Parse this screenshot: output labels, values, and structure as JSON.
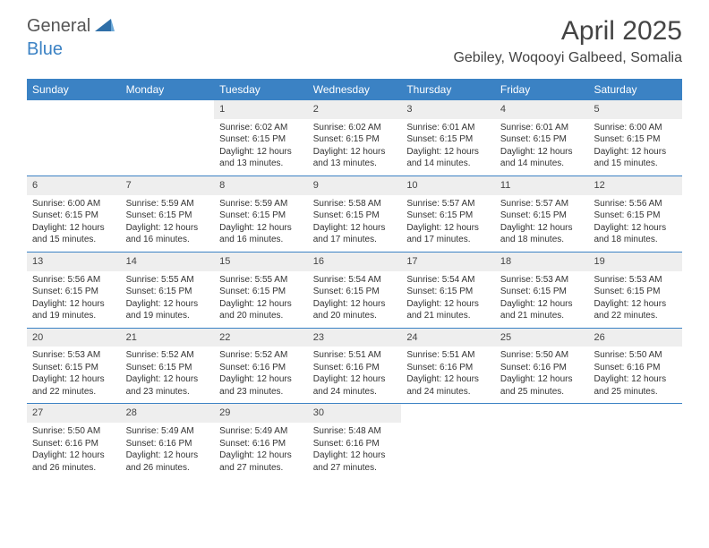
{
  "logo": {
    "part1": "General",
    "part2": "Blue"
  },
  "title": "April 2025",
  "location": "Gebiley, Woqooyi Galbeed, Somalia",
  "colors": {
    "header_bg": "#3b82c4",
    "header_text": "#ffffff",
    "daynum_bg": "#eeeeee",
    "border": "#3b82c4",
    "body_text": "#333333"
  },
  "weekdays": [
    "Sunday",
    "Monday",
    "Tuesday",
    "Wednesday",
    "Thursday",
    "Friday",
    "Saturday"
  ],
  "weeks": [
    [
      {
        "n": "",
        "sr": "",
        "ss": "",
        "dl": ""
      },
      {
        "n": "",
        "sr": "",
        "ss": "",
        "dl": ""
      },
      {
        "n": "1",
        "sr": "Sunrise: 6:02 AM",
        "ss": "Sunset: 6:15 PM",
        "dl": "Daylight: 12 hours and 13 minutes."
      },
      {
        "n": "2",
        "sr": "Sunrise: 6:02 AM",
        "ss": "Sunset: 6:15 PM",
        "dl": "Daylight: 12 hours and 13 minutes."
      },
      {
        "n": "3",
        "sr": "Sunrise: 6:01 AM",
        "ss": "Sunset: 6:15 PM",
        "dl": "Daylight: 12 hours and 14 minutes."
      },
      {
        "n": "4",
        "sr": "Sunrise: 6:01 AM",
        "ss": "Sunset: 6:15 PM",
        "dl": "Daylight: 12 hours and 14 minutes."
      },
      {
        "n": "5",
        "sr": "Sunrise: 6:00 AM",
        "ss": "Sunset: 6:15 PM",
        "dl": "Daylight: 12 hours and 15 minutes."
      }
    ],
    [
      {
        "n": "6",
        "sr": "Sunrise: 6:00 AM",
        "ss": "Sunset: 6:15 PM",
        "dl": "Daylight: 12 hours and 15 minutes."
      },
      {
        "n": "7",
        "sr": "Sunrise: 5:59 AM",
        "ss": "Sunset: 6:15 PM",
        "dl": "Daylight: 12 hours and 16 minutes."
      },
      {
        "n": "8",
        "sr": "Sunrise: 5:59 AM",
        "ss": "Sunset: 6:15 PM",
        "dl": "Daylight: 12 hours and 16 minutes."
      },
      {
        "n": "9",
        "sr": "Sunrise: 5:58 AM",
        "ss": "Sunset: 6:15 PM",
        "dl": "Daylight: 12 hours and 17 minutes."
      },
      {
        "n": "10",
        "sr": "Sunrise: 5:57 AM",
        "ss": "Sunset: 6:15 PM",
        "dl": "Daylight: 12 hours and 17 minutes."
      },
      {
        "n": "11",
        "sr": "Sunrise: 5:57 AM",
        "ss": "Sunset: 6:15 PM",
        "dl": "Daylight: 12 hours and 18 minutes."
      },
      {
        "n": "12",
        "sr": "Sunrise: 5:56 AM",
        "ss": "Sunset: 6:15 PM",
        "dl": "Daylight: 12 hours and 18 minutes."
      }
    ],
    [
      {
        "n": "13",
        "sr": "Sunrise: 5:56 AM",
        "ss": "Sunset: 6:15 PM",
        "dl": "Daylight: 12 hours and 19 minutes."
      },
      {
        "n": "14",
        "sr": "Sunrise: 5:55 AM",
        "ss": "Sunset: 6:15 PM",
        "dl": "Daylight: 12 hours and 19 minutes."
      },
      {
        "n": "15",
        "sr": "Sunrise: 5:55 AM",
        "ss": "Sunset: 6:15 PM",
        "dl": "Daylight: 12 hours and 20 minutes."
      },
      {
        "n": "16",
        "sr": "Sunrise: 5:54 AM",
        "ss": "Sunset: 6:15 PM",
        "dl": "Daylight: 12 hours and 20 minutes."
      },
      {
        "n": "17",
        "sr": "Sunrise: 5:54 AM",
        "ss": "Sunset: 6:15 PM",
        "dl": "Daylight: 12 hours and 21 minutes."
      },
      {
        "n": "18",
        "sr": "Sunrise: 5:53 AM",
        "ss": "Sunset: 6:15 PM",
        "dl": "Daylight: 12 hours and 21 minutes."
      },
      {
        "n": "19",
        "sr": "Sunrise: 5:53 AM",
        "ss": "Sunset: 6:15 PM",
        "dl": "Daylight: 12 hours and 22 minutes."
      }
    ],
    [
      {
        "n": "20",
        "sr": "Sunrise: 5:53 AM",
        "ss": "Sunset: 6:15 PM",
        "dl": "Daylight: 12 hours and 22 minutes."
      },
      {
        "n": "21",
        "sr": "Sunrise: 5:52 AM",
        "ss": "Sunset: 6:15 PM",
        "dl": "Daylight: 12 hours and 23 minutes."
      },
      {
        "n": "22",
        "sr": "Sunrise: 5:52 AM",
        "ss": "Sunset: 6:16 PM",
        "dl": "Daylight: 12 hours and 23 minutes."
      },
      {
        "n": "23",
        "sr": "Sunrise: 5:51 AM",
        "ss": "Sunset: 6:16 PM",
        "dl": "Daylight: 12 hours and 24 minutes."
      },
      {
        "n": "24",
        "sr": "Sunrise: 5:51 AM",
        "ss": "Sunset: 6:16 PM",
        "dl": "Daylight: 12 hours and 24 minutes."
      },
      {
        "n": "25",
        "sr": "Sunrise: 5:50 AM",
        "ss": "Sunset: 6:16 PM",
        "dl": "Daylight: 12 hours and 25 minutes."
      },
      {
        "n": "26",
        "sr": "Sunrise: 5:50 AM",
        "ss": "Sunset: 6:16 PM",
        "dl": "Daylight: 12 hours and 25 minutes."
      }
    ],
    [
      {
        "n": "27",
        "sr": "Sunrise: 5:50 AM",
        "ss": "Sunset: 6:16 PM",
        "dl": "Daylight: 12 hours and 26 minutes."
      },
      {
        "n": "28",
        "sr": "Sunrise: 5:49 AM",
        "ss": "Sunset: 6:16 PM",
        "dl": "Daylight: 12 hours and 26 minutes."
      },
      {
        "n": "29",
        "sr": "Sunrise: 5:49 AM",
        "ss": "Sunset: 6:16 PM",
        "dl": "Daylight: 12 hours and 27 minutes."
      },
      {
        "n": "30",
        "sr": "Sunrise: 5:48 AM",
        "ss": "Sunset: 6:16 PM",
        "dl": "Daylight: 12 hours and 27 minutes."
      },
      {
        "n": "",
        "sr": "",
        "ss": "",
        "dl": ""
      },
      {
        "n": "",
        "sr": "",
        "ss": "",
        "dl": ""
      },
      {
        "n": "",
        "sr": "",
        "ss": "",
        "dl": ""
      }
    ]
  ]
}
